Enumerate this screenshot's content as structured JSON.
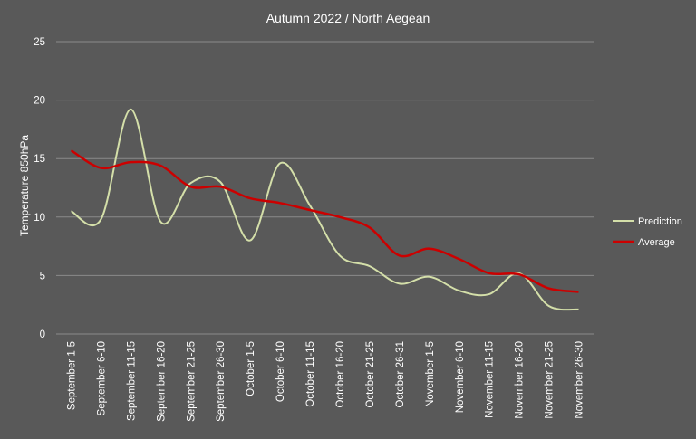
{
  "chart_data": {
    "type": "line",
    "title": "Autumn 2022 / North Aegean",
    "xlabel": "",
    "ylabel": "Temperature 850hPa",
    "ylim": [
      0,
      25
    ],
    "yticks": [
      0,
      5,
      10,
      15,
      20,
      25
    ],
    "grid": true,
    "legend_position": "right",
    "background_color": "#595959",
    "grid_color": "#8a8a8a",
    "categories": [
      "September 1-5",
      "September 6-10",
      "September 11-15",
      "September 16-20",
      "September 21-25",
      "September 26-30",
      "October 1-5",
      "October 6-10",
      "October 11-15",
      "October 16-20",
      "October 21-25",
      "October 26-31",
      "November 1-5",
      "November 6-10",
      "November 11-15",
      "November 16-20",
      "November 21-25",
      "November 26-30"
    ],
    "series": [
      {
        "name": "Prediction",
        "color": "#d4dfa9",
        "values": [
          10.5,
          9.8,
          19.2,
          9.6,
          12.9,
          13.0,
          8.0,
          14.6,
          11.0,
          6.7,
          5.8,
          4.3,
          4.9,
          3.7,
          3.4,
          5.2,
          2.4,
          2.1
        ]
      },
      {
        "name": "Average",
        "color": "#cc0000",
        "values": [
          15.7,
          14.2,
          14.7,
          14.4,
          12.6,
          12.6,
          11.6,
          11.2,
          10.6,
          10.0,
          9.1,
          6.7,
          7.3,
          6.4,
          5.2,
          5.1,
          3.9,
          3.6
        ]
      }
    ]
  }
}
